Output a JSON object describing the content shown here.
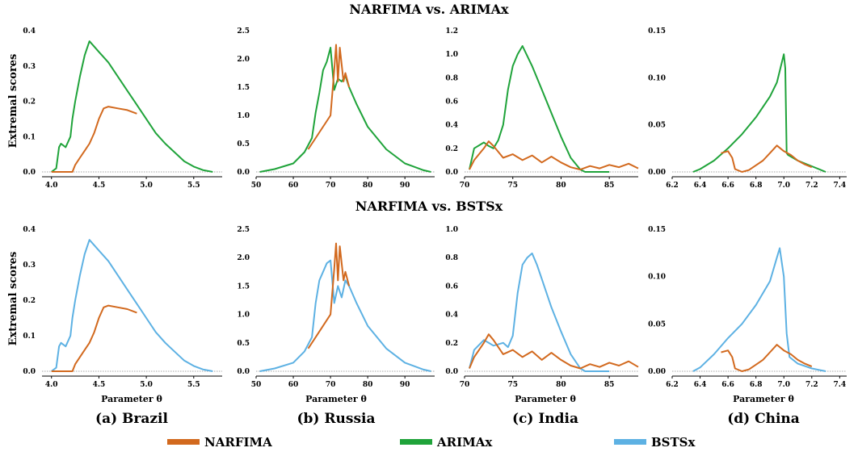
{
  "titles": {
    "row1": "NARFIMA vs. ARIMAx",
    "row2": "NARFIMA vs. BSTSx"
  },
  "ylabel": "Extremal scores",
  "xlabel": "Parameter θ",
  "captions": [
    "(a) Brazil",
    "(b) Russia",
    "(c) India",
    "(d) China"
  ],
  "legend": [
    {
      "label": "NARFIMA",
      "color": "#D2691E"
    },
    {
      "label": "ARIMAx",
      "color": "#1FA33A"
    },
    {
      "label": "BSTSx",
      "color": "#5DB1E3"
    }
  ],
  "chart_data": [
    {
      "type": "line",
      "country": "Brazil",
      "row": 1,
      "col": 0,
      "xlim": [
        3.9,
        5.8
      ],
      "ylim": [
        0,
        0.4
      ],
      "xticks": [
        "4.0",
        "4.5",
        "5.0",
        "5.5"
      ],
      "xtick_values": [
        4.0,
        4.5,
        5.0,
        5.5
      ],
      "yticks": [
        "0.0",
        "0.1",
        "0.2",
        "0.3",
        "0.4"
      ],
      "ytick_values": [
        0,
        0.1,
        0.2,
        0.3,
        0.4
      ],
      "series": [
        {
          "name": "ARIMAx",
          "color": "#1FA33A",
          "x": [
            4.0,
            4.05,
            4.08,
            4.1,
            4.15,
            4.2,
            4.22,
            4.25,
            4.3,
            4.35,
            4.4,
            4.45,
            4.5,
            4.6,
            4.7,
            4.8,
            4.9,
            5.0,
            5.1,
            5.2,
            5.3,
            5.4,
            5.5,
            5.6,
            5.7
          ],
          "y": [
            0,
            0.01,
            0.07,
            0.08,
            0.07,
            0.1,
            0.15,
            0.2,
            0.27,
            0.33,
            0.37,
            0.355,
            0.34,
            0.31,
            0.27,
            0.23,
            0.19,
            0.15,
            0.11,
            0.08,
            0.055,
            0.03,
            0.015,
            0.005,
            0
          ]
        },
        {
          "name": "NARFIMA",
          "color": "#D2691E",
          "x": [
            4.0,
            4.1,
            4.22,
            4.25,
            4.3,
            4.35,
            4.4,
            4.45,
            4.5,
            4.55,
            4.6,
            4.7,
            4.8,
            4.9
          ],
          "y": [
            0,
            0,
            0,
            0.02,
            0.04,
            0.06,
            0.08,
            0.11,
            0.15,
            0.18,
            0.185,
            0.18,
            0.175,
            0.165
          ]
        }
      ]
    },
    {
      "type": "line",
      "country": "Russia",
      "row": 1,
      "col": 1,
      "xlim": [
        50,
        98
      ],
      "ylim": [
        0,
        2.5
      ],
      "xticks": [
        "50",
        "60",
        "70",
        "80",
        "90"
      ],
      "xtick_values": [
        50,
        60,
        70,
        80,
        90
      ],
      "yticks": [
        "0.0",
        "0.5",
        "1.0",
        "1.5",
        "2.0",
        "2.5"
      ],
      "ytick_values": [
        0,
        0.5,
        1.0,
        1.5,
        2.0,
        2.5
      ],
      "series": [
        {
          "name": "ARIMAx",
          "color": "#1FA33A",
          "x": [
            51,
            55,
            60,
            63,
            65,
            66,
            67,
            68,
            69,
            70,
            71,
            72,
            73,
            74,
            75,
            77,
            80,
            85,
            90,
            95,
            97
          ],
          "y": [
            0,
            0.05,
            0.15,
            0.35,
            0.6,
            1.05,
            1.4,
            1.8,
            1.95,
            2.2,
            1.45,
            1.65,
            1.6,
            1.7,
            1.5,
            1.2,
            0.8,
            0.4,
            0.15,
            0.03,
            0
          ]
        },
        {
          "name": "NARFIMA",
          "color": "#D2691E",
          "x": [
            64,
            66,
            68,
            70,
            71,
            71.5,
            72,
            72.5,
            73,
            73.5,
            74,
            75
          ],
          "y": [
            0.4,
            0.6,
            0.8,
            1.0,
            1.8,
            2.25,
            1.6,
            2.2,
            1.9,
            1.6,
            1.75,
            1.5
          ]
        }
      ]
    },
    {
      "type": "line",
      "country": "India",
      "row": 1,
      "col": 2,
      "xlim": [
        70,
        88
      ],
      "ylim": [
        0,
        1.2
      ],
      "xticks": [
        "70",
        "75",
        "80",
        "85"
      ],
      "xtick_values": [
        70,
        75,
        80,
        85
      ],
      "yticks": [
        "0.0",
        "0.2",
        "0.4",
        "0.6",
        "0.8",
        "1.0",
        "1.2"
      ],
      "ytick_values": [
        0,
        0.2,
        0.4,
        0.6,
        0.8,
        1.0,
        1.2
      ],
      "series": [
        {
          "name": "ARIMAx",
          "color": "#1FA33A",
          "x": [
            70.5,
            71,
            72,
            72.5,
            73,
            73.5,
            74,
            74.5,
            75,
            75.5,
            76,
            77,
            78,
            79,
            80,
            81,
            82,
            82.5,
            83,
            84,
            85
          ],
          "y": [
            0.02,
            0.2,
            0.25,
            0.22,
            0.2,
            0.27,
            0.4,
            0.7,
            0.9,
            1.0,
            1.07,
            0.9,
            0.7,
            0.5,
            0.3,
            0.12,
            0.02,
            0,
            0,
            0,
            0
          ]
        },
        {
          "name": "NARFIMA",
          "color": "#D2691E",
          "x": [
            70.5,
            71,
            72,
            72.5,
            73,
            74,
            75,
            76,
            77,
            78,
            79,
            80,
            81,
            82,
            83,
            84,
            85,
            86,
            87,
            88
          ],
          "y": [
            0.02,
            0.1,
            0.2,
            0.26,
            0.22,
            0.12,
            0.15,
            0.1,
            0.14,
            0.08,
            0.13,
            0.08,
            0.04,
            0.02,
            0.05,
            0.03,
            0.06,
            0.04,
            0.07,
            0.03
          ]
        }
      ]
    },
    {
      "type": "line",
      "country": "China",
      "row": 1,
      "col": 3,
      "xlim": [
        6.2,
        7.45
      ],
      "ylim": [
        0,
        0.15
      ],
      "xticks": [
        "6.2",
        "6.4",
        "6.6",
        "6.8",
        "7.0",
        "7.2",
        "7.4"
      ],
      "xtick_values": [
        6.2,
        6.4,
        6.6,
        6.8,
        7.0,
        7.2,
        7.4
      ],
      "yticks": [
        "0.00",
        "0.05",
        "0.10",
        "0.15"
      ],
      "ytick_values": [
        0,
        0.05,
        0.1,
        0.15
      ],
      "series": [
        {
          "name": "ARIMAx",
          "color": "#1FA33A",
          "x": [
            6.35,
            6.4,
            6.5,
            6.6,
            6.7,
            6.8,
            6.9,
            6.95,
            7.0,
            7.01,
            7.02,
            7.03,
            7.1,
            7.2,
            7.3
          ],
          "y": [
            0,
            0.003,
            0.012,
            0.025,
            0.04,
            0.058,
            0.08,
            0.095,
            0.125,
            0.11,
            0.02,
            0.018,
            0.012,
            0.006,
            0
          ]
        },
        {
          "name": "NARFIMA",
          "color": "#D2691E",
          "x": [
            6.55,
            6.6,
            6.63,
            6.65,
            6.7,
            6.75,
            6.8,
            6.85,
            6.9,
            6.95,
            7.0,
            7.05,
            7.1,
            7.15,
            7.2
          ],
          "y": [
            0.02,
            0.022,
            0.015,
            0.003,
            0,
            0.002,
            0.007,
            0.012,
            0.02,
            0.028,
            0.022,
            0.018,
            0.012,
            0.008,
            0.005
          ]
        }
      ]
    },
    {
      "type": "line",
      "country": "Brazil",
      "row": 2,
      "col": 0,
      "xlim": [
        3.9,
        5.8
      ],
      "ylim": [
        0,
        0.4
      ],
      "xticks": [
        "4.0",
        "4.5",
        "5.0",
        "5.5"
      ],
      "xtick_values": [
        4.0,
        4.5,
        5.0,
        5.5
      ],
      "yticks": [
        "0.0",
        "0.1",
        "0.2",
        "0.3",
        "0.4"
      ],
      "ytick_values": [
        0,
        0.1,
        0.2,
        0.3,
        0.4
      ],
      "series": [
        {
          "name": "BSTSx",
          "color": "#5DB1E3",
          "x": [
            4.0,
            4.05,
            4.08,
            4.1,
            4.15,
            4.2,
            4.22,
            4.25,
            4.3,
            4.35,
            4.4,
            4.45,
            4.5,
            4.6,
            4.7,
            4.8,
            4.9,
            5.0,
            5.1,
            5.2,
            5.3,
            5.4,
            5.5,
            5.6,
            5.7
          ],
          "y": [
            0,
            0.01,
            0.07,
            0.08,
            0.07,
            0.1,
            0.15,
            0.2,
            0.27,
            0.33,
            0.37,
            0.355,
            0.34,
            0.31,
            0.27,
            0.23,
            0.19,
            0.15,
            0.11,
            0.08,
            0.055,
            0.03,
            0.015,
            0.005,
            0
          ]
        },
        {
          "name": "NARFIMA",
          "color": "#D2691E",
          "x": [
            4.0,
            4.1,
            4.22,
            4.25,
            4.3,
            4.35,
            4.4,
            4.45,
            4.5,
            4.55,
            4.6,
            4.7,
            4.8,
            4.9
          ],
          "y": [
            0,
            0,
            0,
            0.02,
            0.04,
            0.06,
            0.08,
            0.11,
            0.15,
            0.18,
            0.185,
            0.18,
            0.175,
            0.165
          ]
        }
      ]
    },
    {
      "type": "line",
      "country": "Russia",
      "row": 2,
      "col": 1,
      "xlim": [
        50,
        98
      ],
      "ylim": [
        0,
        2.5
      ],
      "xticks": [
        "50",
        "60",
        "70",
        "80",
        "90"
      ],
      "xtick_values": [
        50,
        60,
        70,
        80,
        90
      ],
      "yticks": [
        "0.0",
        "0.5",
        "1.0",
        "1.5",
        "2.0",
        "2.5"
      ],
      "ytick_values": [
        0,
        0.5,
        1.0,
        1.5,
        2.0,
        2.5
      ],
      "series": [
        {
          "name": "BSTSx",
          "color": "#5DB1E3",
          "x": [
            51,
            55,
            60,
            63,
            65,
            66,
            67,
            68,
            69,
            70,
            71,
            72,
            73,
            74,
            75,
            77,
            80,
            85,
            90,
            95,
            97
          ],
          "y": [
            0,
            0.05,
            0.15,
            0.35,
            0.6,
            1.2,
            1.6,
            1.75,
            1.9,
            1.95,
            1.2,
            1.5,
            1.3,
            1.6,
            1.5,
            1.2,
            0.8,
            0.4,
            0.15,
            0.03,
            0
          ]
        },
        {
          "name": "NARFIMA",
          "color": "#D2691E",
          "x": [
            64,
            66,
            68,
            70,
            71,
            71.5,
            72,
            72.5,
            73,
            73.5,
            74,
            75
          ],
          "y": [
            0.4,
            0.6,
            0.8,
            1.0,
            1.8,
            2.25,
            1.6,
            2.2,
            1.9,
            1.6,
            1.75,
            1.5
          ]
        }
      ]
    },
    {
      "type": "line",
      "country": "India",
      "row": 2,
      "col": 2,
      "xlim": [
        70,
        88
      ],
      "ylim": [
        0,
        1.0
      ],
      "xticks": [
        "70",
        "75",
        "80",
        "85"
      ],
      "xtick_values": [
        70,
        75,
        80,
        85
      ],
      "yticks": [
        "0.0",
        "0.2",
        "0.4",
        "0.6",
        "0.8",
        "1.0"
      ],
      "ytick_values": [
        0,
        0.2,
        0.4,
        0.6,
        0.8,
        1.0
      ],
      "series": [
        {
          "name": "BSTSx",
          "color": "#5DB1E3",
          "x": [
            70.5,
            71,
            72,
            72.5,
            73,
            74,
            74.5,
            75,
            75.5,
            76,
            76.5,
            77,
            77.5,
            78,
            79,
            80,
            81,
            82,
            82.5,
            83,
            85
          ],
          "y": [
            0.02,
            0.15,
            0.22,
            0.2,
            0.18,
            0.2,
            0.17,
            0.25,
            0.55,
            0.75,
            0.8,
            0.83,
            0.75,
            0.65,
            0.45,
            0.28,
            0.12,
            0.02,
            0,
            0,
            0
          ]
        },
        {
          "name": "NARFIMA",
          "color": "#D2691E",
          "x": [
            70.5,
            71,
            72,
            72.5,
            73,
            74,
            75,
            76,
            77,
            78,
            79,
            80,
            81,
            82,
            83,
            84,
            85,
            86,
            87,
            88
          ],
          "y": [
            0.02,
            0.1,
            0.2,
            0.26,
            0.22,
            0.12,
            0.15,
            0.1,
            0.14,
            0.08,
            0.13,
            0.08,
            0.04,
            0.02,
            0.05,
            0.03,
            0.06,
            0.04,
            0.07,
            0.03
          ]
        }
      ]
    },
    {
      "type": "line",
      "country": "China",
      "row": 2,
      "col": 3,
      "xlim": [
        6.2,
        7.45
      ],
      "ylim": [
        0,
        0.15
      ],
      "xticks": [
        "6.2",
        "6.4",
        "6.6",
        "6.8",
        "7.0",
        "7.2",
        "7.4"
      ],
      "xtick_values": [
        6.2,
        6.4,
        6.6,
        6.8,
        7.0,
        7.2,
        7.4
      ],
      "yticks": [
        "0.00",
        "0.05",
        "0.10",
        "0.15"
      ],
      "ytick_values": [
        0,
        0.05,
        0.1,
        0.15
      ],
      "series": [
        {
          "name": "BSTSx",
          "color": "#5DB1E3",
          "x": [
            6.35,
            6.4,
            6.5,
            6.6,
            6.7,
            6.8,
            6.9,
            6.95,
            6.97,
            7.0,
            7.02,
            7.04,
            7.1,
            7.2,
            7.3
          ],
          "y": [
            0,
            0.004,
            0.018,
            0.035,
            0.05,
            0.07,
            0.095,
            0.12,
            0.13,
            0.1,
            0.04,
            0.015,
            0.008,
            0.003,
            0
          ]
        },
        {
          "name": "NARFIMA",
          "color": "#D2691E",
          "x": [
            6.55,
            6.6,
            6.63,
            6.65,
            6.7,
            6.75,
            6.8,
            6.85,
            6.9,
            6.95,
            7.0,
            7.05,
            7.1,
            7.15,
            7.2
          ],
          "y": [
            0.02,
            0.022,
            0.015,
            0.003,
            0,
            0.002,
            0.007,
            0.012,
            0.02,
            0.028,
            0.022,
            0.018,
            0.012,
            0.008,
            0.005
          ]
        }
      ]
    }
  ]
}
